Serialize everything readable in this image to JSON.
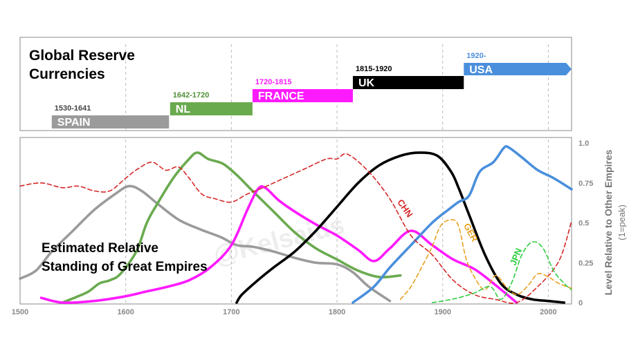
{
  "timeline": {
    "title_line1": "Global Reserve",
    "title_line2": "Currencies",
    "periods": [
      {
        "name": "SPAIN",
        "years": "1530-1641",
        "start": 1530,
        "end": 1641,
        "color": "#9b9b9b",
        "years_color": "#444444"
      },
      {
        "name": "NL",
        "years": "1642-1720",
        "start": 1642,
        "end": 1720,
        "color": "#6aaa4f",
        "years_color": "#4f8f35"
      },
      {
        "name": "FRANCE",
        "years": "1720-1815",
        "start": 1720,
        "end": 1815,
        "color": "#ff1aff",
        "years_color": "#ff1aff"
      },
      {
        "name": "UK",
        "years": "1815-1920",
        "start": 1815,
        "end": 1920,
        "color": "#000000",
        "years_color": "#000000"
      },
      {
        "name": "USA",
        "years": "1920-",
        "start": 1920,
        "end": 2022,
        "color": "#4a8fdc",
        "years_color": "#4a8fdc"
      }
    ]
  },
  "chart_data": {
    "type": "line",
    "title": "Estimated Relative Standing of Great Empires",
    "title_line1": "Estimated Relative",
    "title_line2": "Standing of Great Empires",
    "xlabel": "",
    "ylabel": "Level Relative to Other Empires",
    "ylabel_sub": "(1=peak)",
    "xlim": [
      1500,
      2022
    ],
    "ylim": [
      0,
      1
    ],
    "xticks": [
      "1500",
      "1600",
      "1700",
      "1800",
      "1900",
      "2000"
    ],
    "yticks": [
      "0",
      "0.25",
      "0.5",
      "0.75",
      "1.0"
    ],
    "gridlines_at": [
      1600,
      1700,
      1800,
      1900,
      2000
    ],
    "watermark": "@Kelsaids",
    "series": [
      {
        "name": "Spain",
        "color": "#9b9b9b",
        "dash": false,
        "x": [
          1500,
          1515,
          1530,
          1550,
          1570,
          1590,
          1603,
          1615,
          1630,
          1650,
          1670,
          1690,
          1705,
          1720,
          1740,
          1760,
          1780,
          1800,
          1815,
          1830,
          1850
        ],
        "y": [
          0.15,
          0.2,
          0.32,
          0.45,
          0.58,
          0.68,
          0.73,
          0.7,
          0.62,
          0.52,
          0.46,
          0.41,
          0.36,
          0.35,
          0.32,
          0.28,
          0.25,
          0.24,
          0.19,
          0.1,
          0.01
        ]
      },
      {
        "name": "Netherlands",
        "color": "#6aaa4f",
        "dash": false,
        "x": [
          1540,
          1555,
          1565,
          1575,
          1585,
          1595,
          1610,
          1620,
          1630,
          1645,
          1660,
          1668,
          1678,
          1692,
          1705,
          1720,
          1740,
          1760,
          1780,
          1800,
          1820,
          1840,
          1860
        ],
        "y": [
          0.0,
          0.04,
          0.07,
          0.12,
          0.14,
          0.18,
          0.32,
          0.5,
          0.62,
          0.78,
          0.9,
          0.94,
          0.9,
          0.87,
          0.8,
          0.7,
          0.57,
          0.44,
          0.34,
          0.27,
          0.2,
          0.16,
          0.17
        ]
      },
      {
        "name": "France",
        "color": "#ff1aff",
        "dash": false,
        "x": [
          1520,
          1540,
          1570,
          1600,
          1620,
          1640,
          1660,
          1680,
          1700,
          1715,
          1725,
          1732,
          1745,
          1760,
          1780,
          1800,
          1820,
          1835,
          1850,
          1870,
          1890,
          1910,
          1930,
          1950,
          1970
        ],
        "y": [
          0.03,
          0.0,
          0.01,
          0.04,
          0.07,
          0.1,
          0.14,
          0.22,
          0.36,
          0.58,
          0.71,
          0.72,
          0.64,
          0.57,
          0.49,
          0.42,
          0.33,
          0.26,
          0.34,
          0.45,
          0.36,
          0.27,
          0.21,
          0.11,
          0.0
        ]
      },
      {
        "name": "United Kingdom",
        "color": "#000000",
        "dash": false,
        "x": [
          1705,
          1710,
          1725,
          1740,
          1760,
          1780,
          1800,
          1820,
          1840,
          1860,
          1878,
          1895,
          1908,
          1915,
          1925,
          1940,
          1955,
          1970,
          1985,
          2000,
          2015
        ],
        "y": [
          0.0,
          0.05,
          0.14,
          0.22,
          0.32,
          0.45,
          0.6,
          0.75,
          0.86,
          0.92,
          0.94,
          0.92,
          0.82,
          0.72,
          0.55,
          0.3,
          0.12,
          0.05,
          0.02,
          0.01,
          0.0
        ]
      },
      {
        "name": "United States",
        "color": "#4a8fdc",
        "dash": false,
        "x": [
          1815,
          1835,
          1850,
          1870,
          1890,
          1905,
          1915,
          1925,
          1935,
          1948,
          1958,
          1963,
          1975,
          1990,
          2005,
          2022
        ],
        "y": [
          0.0,
          0.1,
          0.22,
          0.36,
          0.5,
          0.58,
          0.63,
          0.67,
          0.82,
          0.88,
          0.97,
          0.97,
          0.91,
          0.83,
          0.78,
          0.71
        ]
      },
      {
        "name": "China",
        "color": "#d62828",
        "dash": true,
        "x": [
          1500,
          1520,
          1540,
          1555,
          1570,
          1585,
          1600,
          1612,
          1625,
          1638,
          1650,
          1660,
          1672,
          1685,
          1700,
          1715,
          1730,
          1750,
          1770,
          1790,
          1800,
          1810,
          1830,
          1850,
          1870,
          1890,
          1910,
          1930,
          1950,
          1970,
          1990,
          2010,
          2022
        ],
        "y": [
          0.73,
          0.75,
          0.72,
          0.73,
          0.7,
          0.7,
          0.78,
          0.84,
          0.88,
          0.83,
          0.85,
          0.78,
          0.68,
          0.65,
          0.63,
          0.68,
          0.72,
          0.78,
          0.84,
          0.9,
          0.9,
          0.93,
          0.82,
          0.65,
          0.42,
          0.3,
          0.14,
          0.05,
          0.02,
          0.0,
          0.1,
          0.26,
          0.51
        ]
      },
      {
        "name": "Germany",
        "color": "#e8a020",
        "dash": true,
        "x": [
          1860,
          1870,
          1880,
          1890,
          1898,
          1908,
          1915,
          1922,
          1930,
          1940,
          1950,
          1960,
          1970,
          1980,
          1990,
          2000,
          2010,
          2022
        ],
        "y": [
          0.02,
          0.1,
          0.22,
          0.35,
          0.48,
          0.52,
          0.48,
          0.28,
          0.16,
          0.08,
          0.17,
          0.1,
          0.05,
          0.1,
          0.18,
          0.16,
          0.12,
          0.09
        ]
      },
      {
        "name": "Japan",
        "color": "#2ecc40",
        "dash": true,
        "x": [
          1890,
          1900,
          1915,
          1930,
          1945,
          1955,
          1965,
          1975,
          1985,
          1995,
          2005,
          2015,
          2022
        ],
        "y": [
          0.0,
          0.01,
          0.03,
          0.06,
          0.1,
          0.02,
          0.12,
          0.3,
          0.38,
          0.34,
          0.2,
          0.12,
          0.08
        ]
      }
    ],
    "series_labels": [
      {
        "text": "CHN",
        "color": "#d62828",
        "x": 1862,
        "y": 0.58,
        "rotate": 55
      },
      {
        "text": "GER",
        "color": "#e8a020",
        "x": 1924,
        "y": 0.43,
        "rotate": 62
      },
      {
        "text": "JPN",
        "color": "#2ecc40",
        "x": 1972,
        "y": 0.28,
        "rotate": -68
      }
    ]
  }
}
